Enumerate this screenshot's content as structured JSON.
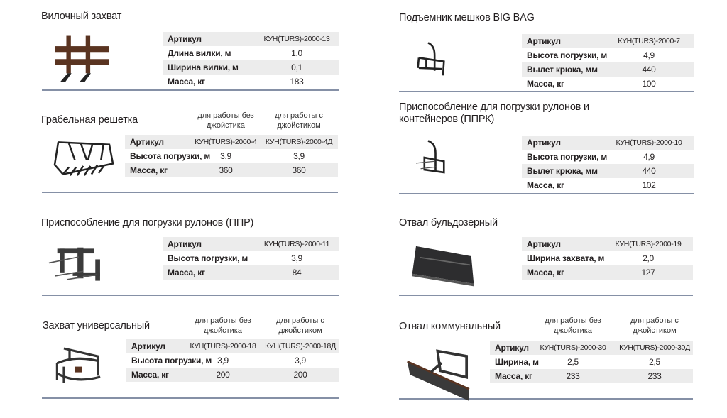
{
  "colors": {
    "row_shade": "#ececec",
    "rule": "#8590a6",
    "text": "#231f20",
    "rust": "#5a3421"
  },
  "sections": [
    {
      "title": "Вилочный захват",
      "image_icon": "fork-grab-image",
      "rows": [
        {
          "label": "Артикул",
          "values": [
            "КУН(TURS)-2000-13"
          ]
        },
        {
          "label": "Длина вилки, м",
          "values": [
            "1,0"
          ]
        },
        {
          "label": "Ширина вилки, м",
          "values": [
            "0,1"
          ]
        },
        {
          "label": "Масса, кг",
          "values": [
            "183"
          ]
        }
      ]
    },
    {
      "title": "Грабельная решетка",
      "image_icon": "rake-grid-image",
      "columns": [
        "для работы без джойстика",
        "для работы с джойстиком"
      ],
      "rows": [
        {
          "label": "Артикул",
          "values": [
            "КУН(TURS)-2000-4",
            "КУН(TURS)-2000-4Д"
          ]
        },
        {
          "label": "Высота погрузки, м",
          "values": [
            "3,9",
            "3,9"
          ]
        },
        {
          "label": "Масса, кг",
          "values": [
            "360",
            "360"
          ]
        }
      ]
    },
    {
      "title": "Приспособление для погрузки рулонов (ППР)",
      "image_icon": "bale-spear-image",
      "rows": [
        {
          "label": "Артикул",
          "values": [
            "КУН(TURS)-2000-11"
          ]
        },
        {
          "label": "Высота погрузки, м",
          "values": [
            "3,9"
          ]
        },
        {
          "label": "Масса, кг",
          "values": [
            "84"
          ]
        }
      ]
    },
    {
      "title": "Захват универсальный",
      "image_icon": "universal-grab-image",
      "columns": [
        "для работы без джойстика",
        "для работы с джойстиком"
      ],
      "rows": [
        {
          "label": "Артикул",
          "values": [
            "КУН(TURS)-2000-18",
            "КУН(TURS)-2000-18Д"
          ]
        },
        {
          "label": "Высота погрузки, м",
          "values": [
            "3,9",
            "3,9"
          ]
        },
        {
          "label": "Масса, кг",
          "values": [
            "200",
            "200"
          ]
        }
      ]
    },
    {
      "title": "Подъемник мешков BIG BAG",
      "image_icon": "bigbag-lifter-image",
      "rows": [
        {
          "label": "Артикул",
          "values": [
            "КУН(TURS)-2000-7"
          ]
        },
        {
          "label": "Высота погрузки, м",
          "values": [
            "4,9"
          ]
        },
        {
          "label": "Вылет крюка, мм",
          "values": [
            "440"
          ]
        },
        {
          "label": "Масса, кг",
          "values": [
            "100"
          ]
        }
      ]
    },
    {
      "title": "Приспособление для погрузки рулонов и\nконтейнеров (ППРК)",
      "image_icon": "bale-container-lifter-image",
      "rows": [
        {
          "label": "Артикул",
          "values": [
            "КУН(TURS)-2000-10"
          ]
        },
        {
          "label": "Высота погрузки, м",
          "values": [
            "4,9"
          ]
        },
        {
          "label": "Вылет крюка, мм",
          "values": [
            "440"
          ]
        },
        {
          "label": "Масса, кг",
          "values": [
            "102"
          ]
        }
      ]
    },
    {
      "title": "Отвал бульдозерный",
      "image_icon": "bulldozer-blade-image",
      "rows": [
        {
          "label": "Артикул",
          "values": [
            "КУН(TURS)-2000-19"
          ]
        },
        {
          "label": "Ширина захвата, м",
          "values": [
            "2,0"
          ]
        },
        {
          "label": "Масса, кг",
          "values": [
            "127"
          ]
        }
      ]
    },
    {
      "title": "Отвал коммунальный",
      "image_icon": "municipal-blade-image",
      "columns": [
        "для работы без джойстика",
        "для работы с джойстиком"
      ],
      "rows": [
        {
          "label": "Артикул",
          "values": [
            "КУН(TURS)-2000-30",
            "КУН(TURS)-2000-30Д"
          ]
        },
        {
          "label": "Ширина, м",
          "values": [
            "2,5",
            "2,5"
          ]
        },
        {
          "label": "Масса, кг",
          "values": [
            "233",
            "233"
          ]
        }
      ]
    }
  ]
}
